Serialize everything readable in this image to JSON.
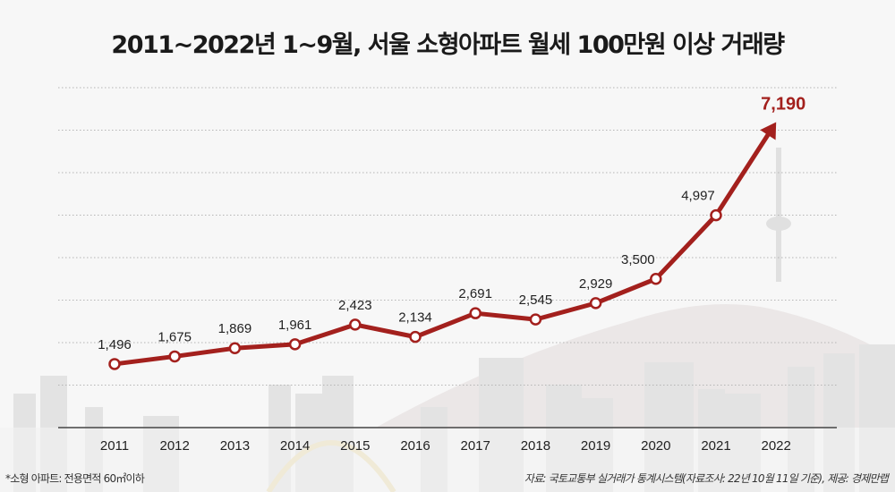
{
  "title": "2011~2022년 1~9월, 서울 소형아파트 월세 100만원 이상 거래량",
  "footnote": "*소형 아파트: 전용면적 60㎡이하",
  "source": "자료: 국토교통부 실거래가 통계시스템(자료조사: 22년 10월 11일 기준), 제공: 경제만랩",
  "colors": {
    "line": "#a3201d",
    "background": "#f7f7f7",
    "grid": "#b5b5b5"
  },
  "chart_data": {
    "type": "line",
    "title": "2011~2022년 1~9월, 서울 소형아파트 월세 100만원 이상 거래량",
    "categories": [
      "2011",
      "2012",
      "2013",
      "2014",
      "2015",
      "2016",
      "2017",
      "2018",
      "2019",
      "2020",
      "2021",
      "2022"
    ],
    "values": [
      1496,
      1675,
      1869,
      1961,
      2423,
      2134,
      2691,
      2545,
      2929,
      3500,
      4997,
      7190
    ],
    "labels": [
      "1,496",
      "1,675",
      "1,869",
      "1,961",
      "2,423",
      "2,134",
      "2,691",
      "2,545",
      "2,929",
      "3,500",
      "4,997",
      "7,190"
    ],
    "ylim": [
      0,
      8000
    ],
    "grid": true,
    "last_point": "arrow"
  }
}
